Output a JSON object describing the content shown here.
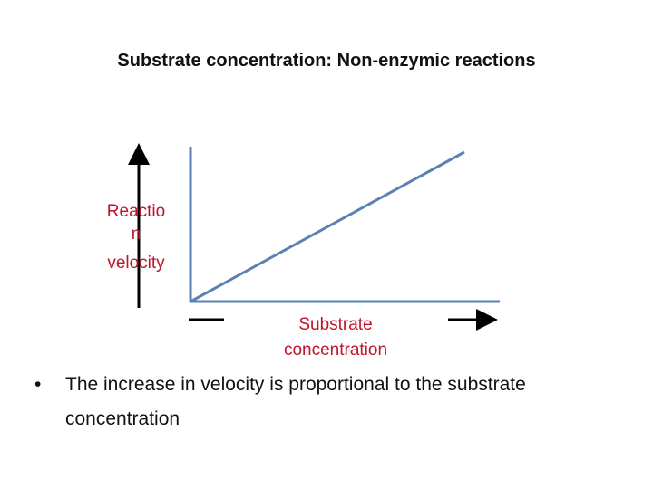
{
  "title": "Substrate concentration: Non-enzymic reactions",
  "diagram": {
    "y_label": [
      "Reactio",
      "n",
      "velocity"
    ],
    "x_label": [
      "Substrate",
      "concentration"
    ]
  },
  "bullets": [
    "The increase in velocity is proportional to the substrate concentration"
  ]
}
